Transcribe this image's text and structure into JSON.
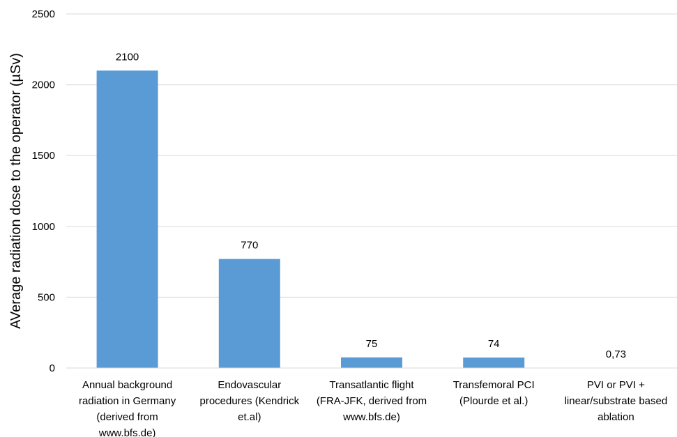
{
  "chart_data": {
    "type": "bar",
    "title": "",
    "xlabel": "",
    "ylabel": "AVerage radiation dose to the operator (µSv)",
    "ylim": [
      0,
      2500
    ],
    "yticks": [
      0,
      500,
      1000,
      1500,
      2000,
      2500
    ],
    "ytick_labels": [
      "0",
      "500",
      "1000",
      "1500",
      "2000",
      "2500"
    ],
    "grid": "horizontal",
    "legend": "none",
    "bar_color": "#5b9bd5",
    "categories": [
      [
        "Annual background",
        "radiation in Germany",
        "(derived from",
        "www.bfs.de)"
      ],
      [
        "Endovascular",
        "procedures (Kendrick",
        "et.al)"
      ],
      [
        "Transatlantic flight",
        "(FRA-JFK, derived from",
        "www.bfs.de)"
      ],
      [
        "Transfemoral PCI",
        "(Plourde et al.)"
      ],
      [
        "PVI or PVI +",
        "linear/substrate based",
        "ablation"
      ]
    ],
    "values": [
      2100,
      770,
      75,
      74,
      0.73
    ],
    "data_labels": [
      "2100",
      "770",
      "75",
      "74",
      "0,73"
    ]
  }
}
